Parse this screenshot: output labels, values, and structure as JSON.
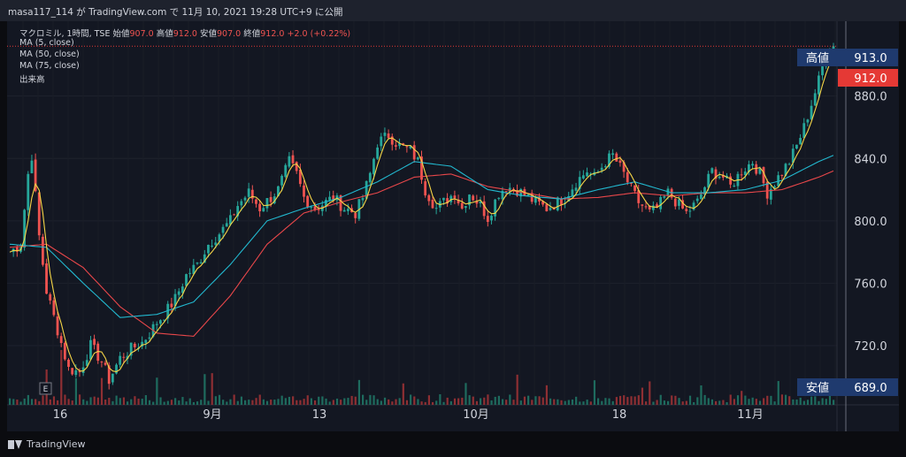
{
  "header": {
    "caption": "masa117_114 が TradingView.com で 11月 10, 2021 19:28 UTC+9 に公開"
  },
  "legend": {
    "symbol": "マクロミル, 1時間, TSE",
    "open_label": "始値",
    "open_value": "907.0",
    "high_label": "高値",
    "high_value": "912.0",
    "low_label": "安値",
    "low_value": "907.0",
    "close_label": "終値",
    "close_value": "912.0",
    "change": "+2.0 (+0.22%)",
    "ma5": "MA (5, close)",
    "ma50": "MA (50, close)",
    "ma75": "MA (75, close)",
    "volume": "出来高"
  },
  "price_tags": {
    "high_label": "高値",
    "high_value": "913.0",
    "current_value": "912.0",
    "low_label": "安値",
    "low_value": "689.0"
  },
  "event_marker": "E",
  "brand": {
    "name": "TradingView",
    "logo_icon": "tradingview-logo-icon"
  },
  "colors": {
    "up": "#26a69a",
    "down": "#ef5350",
    "ma5": "#f5d547",
    "ma50": "#22b8cf",
    "ma75": "#e8474a",
    "grid": "#1e222d",
    "text": "#d1d4dc",
    "tag_bg": "#1f3a6e",
    "current_bg": "#e53935"
  },
  "chart_data": {
    "type": "candlestick",
    "interval": "1時間",
    "y_axis": {
      "ticks": [
        "720.0",
        "760.0",
        "800.0",
        "840.0",
        "880.0"
      ],
      "range": [
        682,
        928
      ],
      "side": "right",
      "grid": true
    },
    "x_axis": {
      "ticks": [
        "16",
        "9月",
        "13",
        "10月",
        "18",
        "11月"
      ]
    },
    "series": [
      {
        "name": "MA (5, close)",
        "color": "#f5d547"
      },
      {
        "name": "MA (50, close)",
        "color": "#22b8cf"
      },
      {
        "name": "MA (75, close)",
        "color": "#e8474a"
      },
      {
        "name": "出来高"
      }
    ],
    "price_path": [
      [
        0,
        780
      ],
      [
        3,
        785
      ],
      [
        5,
        830
      ],
      [
        6,
        842
      ],
      [
        8,
        790
      ],
      [
        10,
        755
      ],
      [
        13,
        730
      ],
      [
        16,
        705
      ],
      [
        19,
        703
      ],
      [
        22,
        720
      ],
      [
        25,
        710
      ],
      [
        27,
        698
      ],
      [
        30,
        712
      ],
      [
        33,
        718
      ],
      [
        36,
        722
      ],
      [
        38,
        728
      ],
      [
        40,
        735
      ],
      [
        42,
        740
      ],
      [
        45,
        750
      ],
      [
        48,
        765
      ],
      [
        51,
        772
      ],
      [
        54,
        785
      ],
      [
        57,
        792
      ],
      [
        60,
        800
      ],
      [
        62,
        810
      ],
      [
        65,
        818
      ],
      [
        68,
        808
      ],
      [
        71,
        815
      ],
      [
        73,
        820
      ],
      [
        76,
        838
      ],
      [
        78,
        830
      ],
      [
        80,
        815
      ],
      [
        83,
        808
      ],
      [
        86,
        812
      ],
      [
        88,
        815
      ],
      [
        91,
        808
      ],
      [
        94,
        805
      ],
      [
        96,
        815
      ],
      [
        98,
        830
      ],
      [
        100,
        850
      ],
      [
        103,
        855
      ],
      [
        106,
        848
      ],
      [
        109,
        845
      ],
      [
        111,
        838
      ],
      [
        113,
        820
      ],
      [
        116,
        808
      ],
      [
        118,
        812
      ],
      [
        121,
        818
      ],
      [
        123,
        808
      ],
      [
        125,
        818
      ],
      [
        128,
        810
      ],
      [
        130,
        802
      ],
      [
        133,
        818
      ],
      [
        135,
        822
      ],
      [
        138,
        820
      ],
      [
        141,
        815
      ],
      [
        143,
        812
      ],
      [
        146,
        808
      ],
      [
        149,
        812
      ],
      [
        151,
        815
      ],
      [
        154,
        825
      ],
      [
        157,
        832
      ],
      [
        159,
        828
      ],
      [
        162,
        838
      ],
      [
        164,
        842
      ],
      [
        167,
        830
      ],
      [
        169,
        820
      ],
      [
        171,
        812
      ],
      [
        174,
        805
      ],
      [
        176,
        808
      ],
      [
        179,
        818
      ],
      [
        182,
        810
      ],
      [
        184,
        805
      ],
      [
        187,
        812
      ],
      [
        189,
        822
      ],
      [
        191,
        832
      ],
      [
        194,
        828
      ],
      [
        196,
        822
      ],
      [
        199,
        832
      ],
      [
        202,
        838
      ],
      [
        204,
        830
      ],
      [
        206,
        818
      ],
      [
        209,
        828
      ],
      [
        212,
        838
      ],
      [
        214,
        848
      ],
      [
        216,
        860
      ],
      [
        218,
        875
      ],
      [
        220,
        890
      ],
      [
        222,
        907
      ],
      [
        224,
        912
      ]
    ],
    "ma50_path": [
      [
        0,
        785
      ],
      [
        10,
        783
      ],
      [
        20,
        760
      ],
      [
        30,
        738
      ],
      [
        40,
        740
      ],
      [
        50,
        748
      ],
      [
        60,
        772
      ],
      [
        70,
        800
      ],
      [
        80,
        808
      ],
      [
        90,
        815
      ],
      [
        100,
        825
      ],
      [
        110,
        838
      ],
      [
        120,
        835
      ],
      [
        130,
        820
      ],
      [
        140,
        816
      ],
      [
        150,
        814
      ],
      [
        160,
        820
      ],
      [
        170,
        825
      ],
      [
        180,
        818
      ],
      [
        190,
        818
      ],
      [
        200,
        820
      ],
      [
        210,
        826
      ],
      [
        220,
        838
      ],
      [
        224,
        842
      ]
    ],
    "ma75_path": [
      [
        0,
        783
      ],
      [
        10,
        785
      ],
      [
        20,
        770
      ],
      [
        30,
        745
      ],
      [
        40,
        728
      ],
      [
        50,
        726
      ],
      [
        60,
        752
      ],
      [
        70,
        785
      ],
      [
        80,
        805
      ],
      [
        90,
        812
      ],
      [
        100,
        818
      ],
      [
        110,
        828
      ],
      [
        120,
        830
      ],
      [
        130,
        822
      ],
      [
        140,
        818
      ],
      [
        150,
        814
      ],
      [
        160,
        815
      ],
      [
        170,
        818
      ],
      [
        180,
        816
      ],
      [
        190,
        818
      ],
      [
        200,
        818
      ],
      [
        210,
        820
      ],
      [
        220,
        828
      ],
      [
        224,
        832
      ]
    ]
  }
}
